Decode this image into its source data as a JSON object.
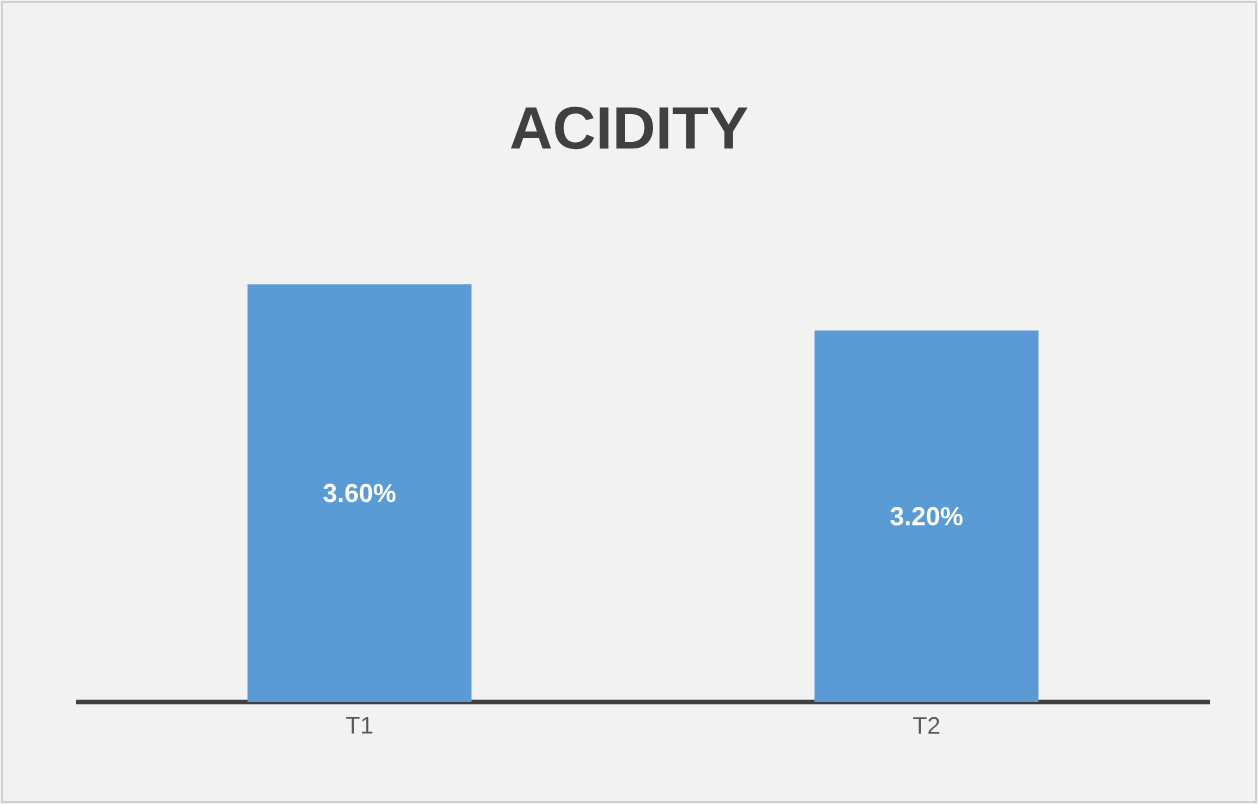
{
  "chart_data": {
    "type": "bar",
    "title": "ACIDITY",
    "categories": [
      "T1",
      "T2"
    ],
    "values": [
      3.6,
      3.2
    ],
    "value_labels": [
      "3.60%",
      "3.20%"
    ],
    "color": "#5b9bd5",
    "tick_labels": "x"
  }
}
